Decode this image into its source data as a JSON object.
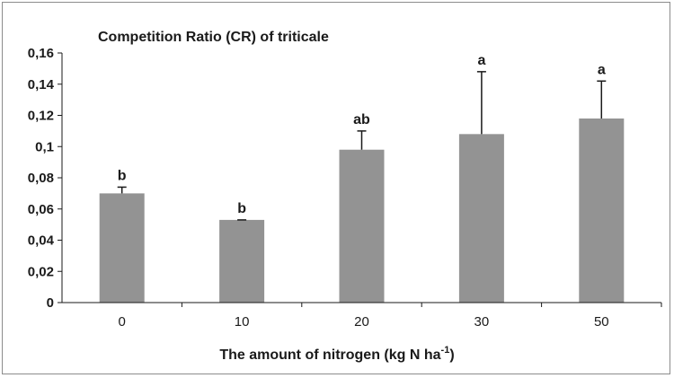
{
  "chart_data": {
    "type": "bar",
    "title": "Competition Ratio (CR) of triticale",
    "xlabel": "The amount of nitrogen (kg  N ha",
    "xlabel_superscript": "-1",
    "xlabel_suffix": ")",
    "ylabel": "",
    "categories": [
      "0",
      "10",
      "20",
      "30",
      "50"
    ],
    "values": [
      0.07,
      0.053,
      0.098,
      0.108,
      0.118
    ],
    "error_upper": [
      0.074,
      0.053,
      0.11,
      0.148,
      0.142
    ],
    "significance_labels": [
      "b",
      "b",
      "ab",
      "a",
      "a"
    ],
    "ylim": [
      0,
      0.16
    ],
    "yticks": [
      "0",
      "0,02",
      "0,04",
      "0,06",
      "0,08",
      "0,1",
      "0,12",
      "0,14",
      "0,16"
    ],
    "grid": false,
    "legend": "none",
    "colors": {
      "bar": "#939393",
      "error_bar": "#1a1a1a",
      "axis": "#1a1a1a",
      "frame": "#8c8c8c"
    }
  }
}
